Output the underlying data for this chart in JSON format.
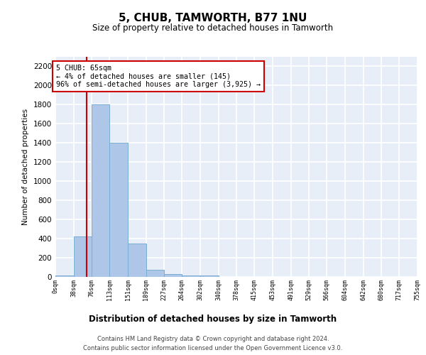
{
  "title": "5, CHUB, TAMWORTH, B77 1NU",
  "subtitle": "Size of property relative to detached houses in Tamworth",
  "xlabel": "Distribution of detached houses by size in Tamworth",
  "ylabel": "Number of detached properties",
  "bar_color": "#aec6e8",
  "bar_edge_color": "#7aadd4",
  "background_color": "#e8eef8",
  "grid_color": "#ffffff",
  "fig_background": "#ffffff",
  "bin_edges": [
    0,
    38,
    76,
    113,
    151,
    189,
    227,
    264,
    302,
    340,
    378,
    415,
    453,
    491,
    529,
    566,
    604,
    642,
    680,
    717,
    755
  ],
  "bar_heights": [
    15,
    420,
    1800,
    1400,
    350,
    75,
    28,
    18,
    18,
    0,
    0,
    0,
    0,
    0,
    0,
    0,
    0,
    0,
    0,
    0
  ],
  "tick_labels": [
    "0sqm",
    "38sqm",
    "76sqm",
    "113sqm",
    "151sqm",
    "189sqm",
    "227sqm",
    "264sqm",
    "302sqm",
    "340sqm",
    "378sqm",
    "415sqm",
    "453sqm",
    "491sqm",
    "529sqm",
    "566sqm",
    "604sqm",
    "642sqm",
    "680sqm",
    "717sqm",
    "755sqm"
  ],
  "ylim": [
    0,
    2300
  ],
  "yticks": [
    0,
    200,
    400,
    600,
    800,
    1000,
    1200,
    1400,
    1600,
    1800,
    2000,
    2200
  ],
  "red_line_x": 65,
  "annotation_text": "5 CHUB: 65sqm\n← 4% of detached houses are smaller (145)\n96% of semi-detached houses are larger (3,925) →",
  "annotation_box_color": "#ffffff",
  "annotation_border_color": "#cc0000",
  "footer_line1": "Contains HM Land Registry data © Crown copyright and database right 2024.",
  "footer_line2": "Contains public sector information licensed under the Open Government Licence v3.0."
}
